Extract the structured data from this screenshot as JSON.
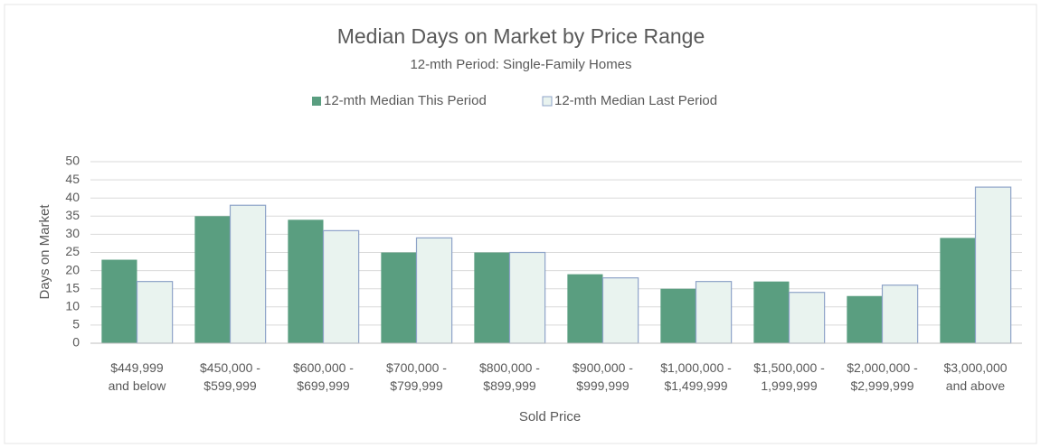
{
  "chart_data": {
    "type": "bar",
    "title": "Median Days on Market by Price Range",
    "subtitle": "12-mth Period: Single-Family Homes",
    "x_label": "Sold Price",
    "y_label": "Days on Market",
    "categories": [
      "$449,999\nand below",
      "$450,000 -\n$599,999",
      "$600,000 -\n$699,999",
      "$700,000 -\n$799,999",
      "$800,000 -\n$899,999",
      "$900,000 -\n$999,999",
      "$1,000,000 -\n$1,499,999",
      "$1,500,000 -\n1,999,999",
      "$2,000,000 -\n$2,999,999",
      "$3,000,000\nand above"
    ],
    "series": [
      {
        "name": "12-mth Median This Period",
        "color": "#5a9e80",
        "values": [
          23,
          35,
          34,
          25,
          25,
          19,
          15,
          17,
          13,
          29
        ]
      },
      {
        "name": "12-mth Median Last Period",
        "color": "#e9f3ef",
        "values": [
          17,
          38,
          31,
          29,
          25,
          18,
          17,
          14,
          16,
          43
        ]
      }
    ],
    "ylim": [
      0,
      50
    ],
    "yticks": [
      0,
      5,
      10,
      15,
      20,
      25,
      30,
      35,
      40,
      45,
      50
    ],
    "grid": true,
    "legend": "top"
  }
}
